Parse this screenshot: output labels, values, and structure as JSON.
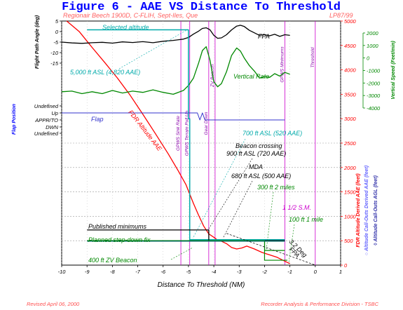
{
  "title": "Figure 6 - AAE VS Distance To Threshold",
  "subtitle_left": "Regionair Beech 1900D, C-FLIH, Sept-Iles, Que",
  "subtitle_right": "LP87/99",
  "footer_left": "Revised April 06, 2000",
  "footer_right": "Recorder Analysis & Performance Division - TSBC",
  "colors": {
    "fpa": "#000000",
    "vertical_rate": "#008800",
    "flap": "#3333cc",
    "fdr_altitude": "#ff0000",
    "selected_altitude": "#00aaaa",
    "events": "#cc00cc",
    "minimums": "#000000",
    "stepdown": "#008800",
    "aae_axis": "#ff0000",
    "fpa_axis": "#000000",
    "vr_axis": "#008800",
    "flap_axis": "#0000ff"
  },
  "axes": {
    "x": {
      "label": "Distance To Threshold (NM)",
      "min": -10,
      "max": 1,
      "ticks": [
        "-10",
        "-9",
        "-8",
        "-7",
        "-6",
        "-5",
        "-4",
        "-3",
        "-2",
        "-1",
        "0",
        "1"
      ]
    },
    "fpa": {
      "label": "Flight Path Angle (deg)",
      "min": -15,
      "max": 5,
      "ticks": [
        "5",
        "0",
        "-5",
        "-10",
        "-15"
      ]
    },
    "vertical_rate": {
      "label": "Vertical Speed (Feet/min)",
      "min": -4000,
      "max": 2000,
      "ticks": [
        "2000",
        "1000",
        "0",
        "-1000",
        "-2000",
        "-3000",
        "-4000"
      ]
    },
    "flap": {
      "label": "Flap Position",
      "ticks": [
        "Undefined",
        "Up",
        "APPR/TO",
        "DWN",
        "Undefined"
      ]
    },
    "aae": {
      "label": "FDR Altitude Derived AAE (feet)",
      "min": 0,
      "max": 5000,
      "ticks": [
        "5000",
        "4500",
        "4000",
        "3500",
        "3000",
        "2500",
        "2000",
        "1500",
        "1000",
        "500",
        "0"
      ]
    },
    "right_labels": [
      "○ Altitude Call-Outs Derived AAE (feet)",
      "◊ Altitude Call-Outs AGL (feet)"
    ]
  },
  "annotations": {
    "selected_altitude": "Selected altitude",
    "fpa": "FPA",
    "asl_5000": "5,000 ft ASL (4,820 AAE)",
    "vertical_rate": "Vertical Rate",
    "flap": "Flap",
    "fdr_altitude": "FDR Altitude AAE",
    "asl_700": "700 ft ASL (520 AAE)",
    "beacon_crossing_1": "Beacon crossing",
    "beacon_crossing_2": "900 ft ASL (720 AAE)",
    "mda_1": "MDA",
    "mda_2": "680 ft ASL (500 AAE)",
    "miles_2": "300 ft 2 miles",
    "sm_1_5": "1 1/2 S.M.",
    "mile_1": "100 ft 1 mile",
    "published_minimums": "Published minimums",
    "planned_stepdown": "Planned step-down fix",
    "zv_beacon_400": "400 ft ZV Beacon",
    "deg_32_1": "3.2 Deg",
    "deg_32_2": "FPA"
  },
  "events": [
    {
      "label": "GPWS Sink Rate",
      "x": -5.3
    },
    {
      "label": "GPWS Terrain Pull Up",
      "x": -4.95
    },
    {
      "label": "Gear Down",
      "x": -4.2
    },
    {
      "label": "ZV Beacon",
      "x": -3.95
    },
    {
      "label": "GPWS Minimums",
      "x": -1.2
    },
    {
      "label": "Threshold",
      "x": 0.0
    }
  ],
  "chart_data": {
    "type": "line",
    "title": "Figure 6 - AAE VS Distance To Threshold",
    "xlabel": "Distance To Threshold (NM)",
    "xlim": [
      -10,
      1
    ],
    "series": [
      {
        "name": "FDR Altitude AAE",
        "axis": "aae",
        "x": [
          -9.8,
          -9.3,
          -8.8,
          -8.3,
          -7.8,
          -7.3,
          -6.8,
          -6.3,
          -5.8,
          -5.4,
          -5.1,
          -4.8,
          -4.6,
          -4.4,
          -4.2,
          -4.0,
          -3.85,
          -3.7,
          -3.5,
          -3.3,
          -3.1,
          -2.9,
          -2.7,
          -2.4,
          -2.1,
          -1.8,
          -1.5,
          -1.2,
          -1.0
        ],
        "y": [
          5000,
          4780,
          4460,
          4150,
          3830,
          3480,
          3090,
          2690,
          2280,
          1930,
          1650,
          1260,
          1020,
          800,
          640,
          570,
          510,
          490,
          440,
          360,
          330,
          350,
          390,
          330,
          260,
          210,
          160,
          80,
          30
        ]
      },
      {
        "name": "FPA",
        "axis": "fpa",
        "x": [
          -10,
          -9.6,
          -9.2,
          -8.8,
          -8.4,
          -8.0,
          -7.6,
          -7.2,
          -6.8,
          -6.4,
          -6.0,
          -5.6,
          -5.2,
          -5.0,
          -4.8,
          -4.6,
          -4.45,
          -4.3,
          -4.15,
          -4.0,
          -3.85,
          -3.7,
          -3.5,
          -3.3,
          -3.1,
          -2.95,
          -2.8,
          -2.6,
          -2.4,
          -2.2,
          -2.0,
          -1.8,
          -1.6,
          -1.4,
          -1.2,
          -1.0
        ],
        "y": [
          -5,
          -5.4,
          -5.6,
          -5.3,
          -5.1,
          -5.5,
          -4.9,
          -5.2,
          -4.8,
          -5.3,
          -4.6,
          -4.2,
          -3.6,
          -2.8,
          -1.2,
          0.2,
          1.5,
          1.8,
          0.8,
          -1.8,
          -3.2,
          -3.0,
          -1.5,
          0.8,
          2.6,
          3.0,
          2.4,
          0.6,
          -0.6,
          -1.8,
          -1.5,
          -2.0,
          -1.3,
          -2.3,
          -1.5,
          -1.8
        ]
      },
      {
        "name": "Vertical Rate",
        "axis": "vertical_rate",
        "x": [
          -10,
          -9.6,
          -9.2,
          -8.8,
          -8.4,
          -8.0,
          -7.6,
          -7.2,
          -6.8,
          -6.4,
          -6.0,
          -5.6,
          -5.2,
          -5.0,
          -4.8,
          -4.6,
          -4.45,
          -4.3,
          -4.15,
          -4.0,
          -3.85,
          -3.7,
          -3.5,
          -3.3,
          -3.1,
          -2.95,
          -2.8,
          -2.6,
          -2.4,
          -2.2,
          -2.0,
          -1.8,
          -1.6,
          -1.4,
          -1.2,
          -1.0
        ],
        "y": [
          -2700,
          -2650,
          -2850,
          -2700,
          -2850,
          -2600,
          -2800,
          -2650,
          -2750,
          -2550,
          -2750,
          -2900,
          -2600,
          -2200,
          -1600,
          -400,
          600,
          900,
          -200,
          -1900,
          -2300,
          -2050,
          -1100,
          200,
          800,
          550,
          0,
          -600,
          -1050,
          -1600,
          -1500,
          -1550,
          -1250,
          -1450,
          -1150,
          -1300
        ]
      },
      {
        "name": "Selected altitude",
        "axis": "aae",
        "x": [
          -9,
          -5,
          -5,
          -4.95,
          -4.95,
          -1.2
        ],
        "y": [
          4820,
          4820,
          3000,
          3000,
          520,
          520
        ]
      },
      {
        "name": "Flap",
        "axis": "flap",
        "x": [
          -10,
          -4.65,
          -4.55,
          -4.45,
          -4.35,
          -4.1,
          -2.7,
          -1.2
        ],
        "y": [
          "Up",
          "Up",
          "APPR/TO",
          "Up",
          "APPR/TO",
          "APPR/TO",
          "APPR/TO",
          "APPR/TO"
        ]
      },
      {
        "name": "Published minimums",
        "axis": "aae",
        "x": [
          -9,
          -4.2,
          -4.2,
          -1.2
        ],
        "y": [
          720,
          720,
          500,
          500
        ]
      },
      {
        "name": "Planned step-down fix",
        "axis": "aae",
        "x": [
          -9,
          -2.0,
          -2.0,
          -1.2
        ],
        "y": [
          500,
          500,
          300,
          300
        ]
      }
    ]
  }
}
